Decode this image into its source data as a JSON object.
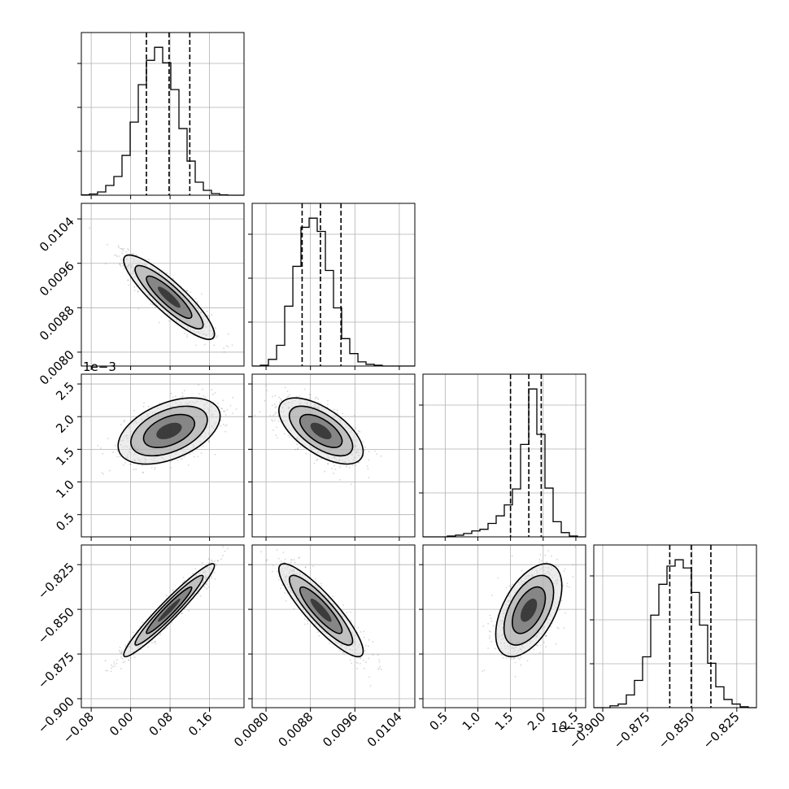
{
  "chart_data": {
    "type": "corner",
    "grid": true,
    "parameters": [
      {
        "ticks": [
          -0.08,
          0.0,
          0.08,
          0.16
        ],
        "tick_labels": [
          "−0.08",
          "0.00",
          "0.08",
          "0.16"
        ],
        "range": [
          -0.1,
          0.23
        ],
        "offset_label": ""
      },
      {
        "ticks": [
          0.008,
          0.0088,
          0.0096,
          0.0104
        ],
        "tick_labels": [
          "0.0080",
          "0.0088",
          "0.0096",
          "0.0104"
        ],
        "range": [
          0.00775,
          0.01068
        ],
        "offset_label": ""
      },
      {
        "ticks": [
          0.5,
          1.0,
          1.5,
          2.0,
          2.5
        ],
        "tick_labels": [
          "0.5",
          "1.0",
          "1.5",
          "2.0",
          "2.5"
        ],
        "range": [
          0.16,
          2.65
        ],
        "offset_label": "1e−3"
      },
      {
        "ticks": [
          -0.9,
          -0.875,
          -0.85,
          -0.825
        ],
        "tick_labels": [
          "−0.900",
          "−0.875",
          "−0.850",
          "−0.825"
        ],
        "range": [
          -0.905,
          -0.814
        ],
        "offset_label": ""
      }
    ],
    "histograms": [
      {
        "edges": [
          -0.1,
          -0.0835,
          -0.067,
          -0.0505,
          -0.034,
          -0.0175,
          -0.001,
          0.0155,
          0.032,
          0.0485,
          0.065,
          0.0815,
          0.098,
          0.1145,
          0.131,
          0.1475,
          0.164,
          0.1805,
          0.197,
          0.2135,
          0.23
        ],
        "counts": [
          0.5,
          1.5,
          4,
          12,
          23,
          49,
          90,
          136,
          166,
          182,
          163,
          130,
          82,
          42,
          16,
          6,
          2,
          0.5,
          0,
          0
        ],
        "quantiles": [
          0.032,
          0.078,
          0.12
        ]
      },
      {
        "edges": [
          0.00775,
          0.007897,
          0.008043,
          0.00819,
          0.008336,
          0.008483,
          0.008629,
          0.008776,
          0.008922,
          0.009069,
          0.009215,
          0.009362,
          0.009508,
          0.009655,
          0.009801,
          0.009948,
          0.010094,
          0.010241,
          0.010387,
          0.010534,
          0.01068
        ],
        "counts": [
          0,
          1,
          8,
          25,
          72,
          120,
          167,
          178,
          162,
          115,
          70,
          33,
          15,
          5,
          2,
          1,
          0,
          0,
          0,
          0
        ],
        "quantiles": [
          0.00865,
          0.00898,
          0.00935
        ]
      },
      {
        "edges": [
          0.16,
          0.2845,
          0.409,
          0.5335,
          0.658,
          0.7825,
          0.907,
          1.0315,
          1.156,
          1.2805,
          1.405,
          1.5295,
          1.654,
          1.7785,
          1.903,
          2.0275,
          2.152,
          2.2765,
          2.401,
          2.5255,
          2.65
        ],
        "counts": [
          0,
          0,
          0,
          1,
          2,
          4,
          7,
          9,
          16,
          25,
          38,
          57,
          110,
          176,
          122,
          58,
          18,
          5,
          1,
          0
        ],
        "quantiles": [
          1.5,
          1.78,
          1.97
        ]
      },
      {
        "edges": [
          -0.905,
          -0.90045,
          -0.8959,
          -0.89135,
          -0.8868,
          -0.88225,
          -0.8777,
          -0.87315,
          -0.8686,
          -0.86405,
          -0.8595,
          -0.85495,
          -0.8504,
          -0.84585,
          -0.8413,
          -0.83675,
          -0.8322,
          -0.82765,
          -0.8231,
          -0.81855,
          -0.814
        ],
        "counts": [
          0,
          0,
          2,
          4,
          14,
          30,
          56,
          102,
          136,
          156,
          163,
          154,
          127,
          91,
          49,
          23,
          9,
          4,
          1,
          0
        ],
        "quantiles": [
          -0.8625,
          -0.8505,
          -0.8395
        ]
      }
    ],
    "pair_plots": [
      {
        "row": 1,
        "col": 0,
        "mean": [
          0.078,
          0.00899
        ],
        "sigma": [
          0.04,
          0.00033
        ],
        "rho": -0.88
      },
      {
        "row": 2,
        "col": 0,
        "mean": [
          0.078,
          1.78
        ],
        "sigma": [
          0.045,
          0.22
        ],
        "rho": 0.45
      },
      {
        "row": 2,
        "col": 1,
        "mean": [
          0.00899,
          1.78
        ],
        "sigma": [
          0.00033,
          0.22
        ],
        "rho": -0.62
      },
      {
        "row": 3,
        "col": 0,
        "mean": [
          0.078,
          -0.8505
        ],
        "sigma": [
          0.04,
          0.0113
        ],
        "rho": 0.96
      },
      {
        "row": 3,
        "col": 1,
        "mean": [
          0.00899,
          -0.8505
        ],
        "sigma": [
          0.00033,
          0.0113
        ],
        "rho": -0.88
      },
      {
        "row": 3,
        "col": 2,
        "mean": [
          1.78,
          -0.8505
        ],
        "sigma": [
          0.22,
          0.0113
        ],
        "rho": 0.52
      }
    ],
    "contour_levels_sigma": [
      0.5,
      1.0,
      1.5,
      2.0
    ],
    "colors": {
      "line": "#000000",
      "grid": "#b0b0b0",
      "points": "#8a8a8a"
    }
  }
}
